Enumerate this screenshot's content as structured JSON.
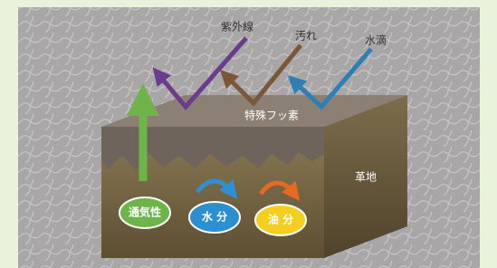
{
  "arrows": {
    "uv": "紫外線",
    "dirt": "汚れ",
    "water": "水滴"
  },
  "layers": {
    "coating": "特殊フッ素",
    "base": "革地"
  },
  "properties": {
    "breathability": "通気性",
    "moisture": "水 分",
    "oil": "油 分"
  }
}
